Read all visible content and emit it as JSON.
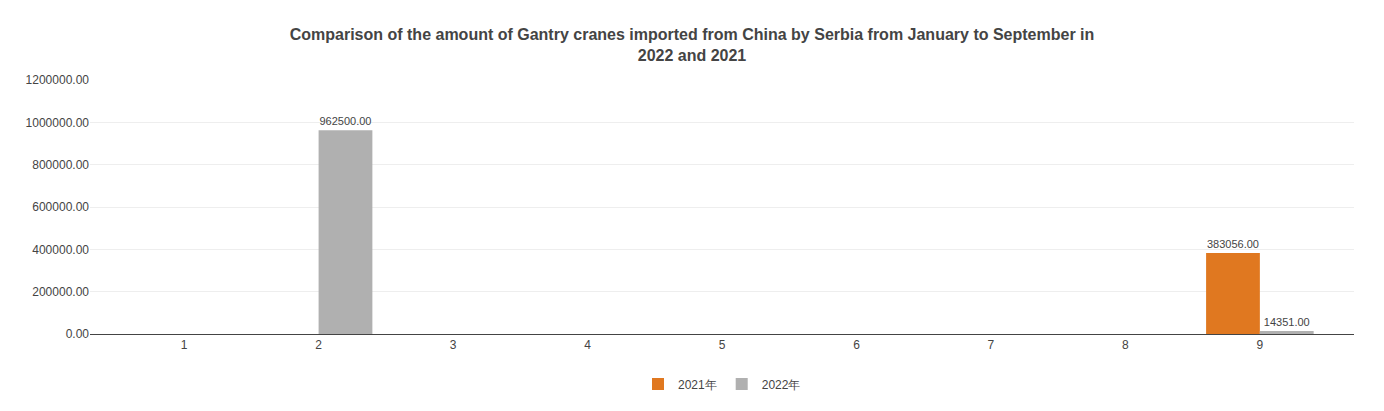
{
  "chart_data": {
    "type": "bar",
    "title": "Comparison of the amount of Gantry cranes imported from China by Serbia from January to September in\n2022 and 2021",
    "x": [
      1,
      2,
      3,
      4,
      5,
      6,
      7,
      8,
      9
    ],
    "xlim": [
      0.3,
      9.7
    ],
    "xticks": [
      1,
      2,
      3,
      4,
      5,
      6,
      7,
      8,
      9
    ],
    "series": [
      {
        "name": "2021年",
        "color": "#e07820",
        "values": [
          0,
          0,
          0,
          0,
          0,
          0,
          0,
          0,
          383056
        ],
        "value_labels": [
          null,
          null,
          null,
          null,
          null,
          null,
          null,
          null,
          "383056.00"
        ]
      },
      {
        "name": "2022年",
        "color": "#b0b0b0",
        "values": [
          0,
          962500,
          0,
          0,
          0,
          0,
          0,
          0,
          14351
        ],
        "value_labels": [
          null,
          "962500.00",
          null,
          null,
          null,
          null,
          null,
          null,
          "14351.00"
        ]
      }
    ],
    "ylim": [
      0,
      1200000
    ],
    "yticks": [
      {
        "value": 0,
        "label": "0.00"
      },
      {
        "value": 200000,
        "label": "200000.00"
      },
      {
        "value": 400000,
        "label": "400000.00"
      },
      {
        "value": 600000,
        "label": "600000.00"
      },
      {
        "value": 800000,
        "label": "800000.00"
      },
      {
        "value": 1000000,
        "label": "1000000.00"
      },
      {
        "value": 1200000,
        "label": "1200000.00"
      }
    ],
    "grid": true,
    "legend": "bottom",
    "data_labels": true
  }
}
